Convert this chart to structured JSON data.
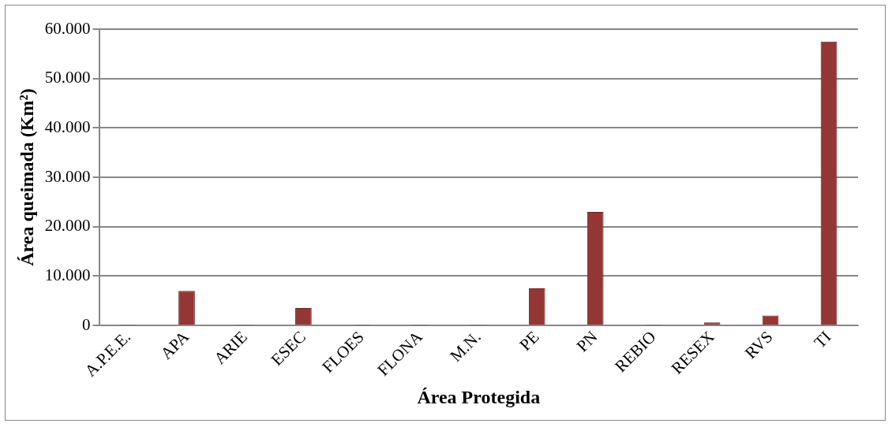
{
  "chart_data": {
    "type": "bar",
    "xlabel": "Área Protegida",
    "ylabel": "Área queimada (Km²)",
    "categories": [
      "A.P.E.E.",
      "APA",
      "ARIE",
      "ESEC",
      "FLOES",
      "FLONA",
      "M.N.",
      "PE",
      "PN",
      "REBIO",
      "RESEX",
      "RVS",
      "TI"
    ],
    "values": [
      100,
      7000,
      100,
      3500,
      100,
      100,
      100,
      7500,
      23000,
      100,
      600,
      2000,
      57500
    ],
    "color": "#943634",
    "ylim": [
      0,
      60000
    ],
    "yticks": [
      {
        "value": 0,
        "label": "0"
      },
      {
        "value": 10000,
        "label": "10.000"
      },
      {
        "value": 20000,
        "label": "20.000"
      },
      {
        "value": 30000,
        "label": "30.000"
      },
      {
        "value": 40000,
        "label": "40.000"
      },
      {
        "value": 50000,
        "label": "50.000"
      },
      {
        "value": 60000,
        "label": "60.000"
      }
    ],
    "grid": "y",
    "legend": false
  }
}
